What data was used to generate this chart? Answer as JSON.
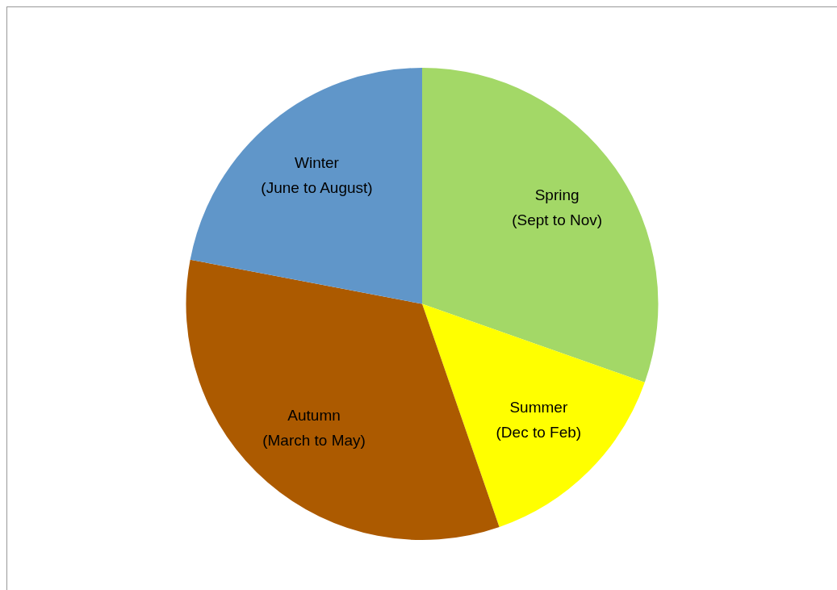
{
  "chart_data": {
    "type": "pie",
    "categories": [
      "Spring\n(Sept to Nov)",
      "Summer\n(Dec to Feb)",
      "Autumn\n(March to May)",
      "Winter\n(June to August)"
    ],
    "values": [
      30.4,
      14.3,
      33.3,
      22.0
    ],
    "colors": [
      "#a3d867",
      "#ffff00",
      "#ac5a00",
      "#6096c9"
    ],
    "legend": false
  }
}
